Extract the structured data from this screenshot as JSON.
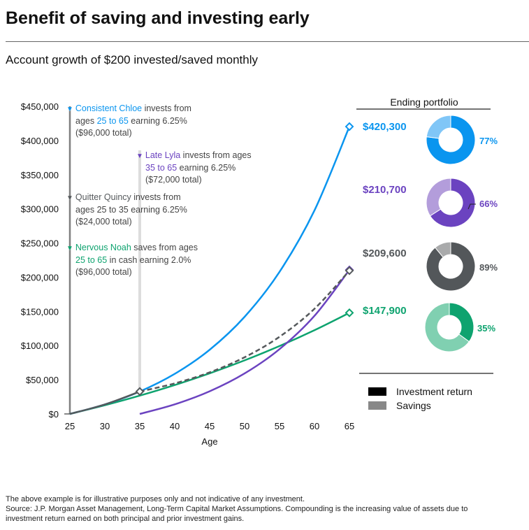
{
  "title": "Benefit of saving and investing early",
  "subtitle": "Account growth of $200 invested/saved monthly",
  "chart_data": {
    "type": "line",
    "xlabel": "Age",
    "ylabel": "",
    "x": [
      25,
      30,
      35,
      40,
      45,
      50,
      55,
      60,
      65
    ],
    "xlim": [
      25,
      65
    ],
    "ylim": [
      0,
      450000
    ],
    "x_ticks": [
      "25",
      "30",
      "35",
      "40",
      "45",
      "50",
      "55",
      "60",
      "65"
    ],
    "y_ticks": [
      "$0",
      "$50,000",
      "$100,000",
      "$150,000",
      "$200,000",
      "$250,000",
      "$300,000",
      "$350,000",
      "$400,000",
      "$450,000"
    ],
    "grid": false,
    "series": [
      {
        "name": "Consistent Chloe",
        "color": "#0a95ef",
        "dash": false,
        "values": [
          0,
          13850,
          32760,
          58570,
          93840,
          142020,
          207810,
          297640,
          420300
        ]
      },
      {
        "name": "Late Lyla",
        "color": "#6b43c0",
        "dash": false,
        "values": [
          null,
          null,
          0,
          14000,
          33100,
          59200,
          94800,
          143500,
          210700
        ]
      },
      {
        "name": "Quitter Quincy",
        "color": "#55595c",
        "dash": true,
        "values": [
          0,
          13850,
          32760,
          44630,
          60810,
          82850,
          112870,
          153780,
          209600
        ]
      },
      {
        "name": "Nervous Noah",
        "color": "#0ea36f",
        "dash": false,
        "values": [
          0,
          12700,
          26750,
          42260,
          59420,
          78370,
          99320,
          122470,
          147900
        ]
      }
    ],
    "annotations": [
      {
        "name": "Consistent Chloe",
        "l1": " invests from",
        "l2a": "ages ",
        "range": "25 to 65",
        "l2b": " earning 6.25%",
        "l3": "($96,000 total)",
        "color": "#0a95ef"
      },
      {
        "name": "Late Lyla",
        "l1": " invests from ages",
        "l2a": "",
        "range": "35 to 65",
        "l2b": " earning 6.25%",
        "l3": "($72,000 total)",
        "color": "#6b43c0"
      },
      {
        "name": "Quitter Quincy",
        "l1": " invests from",
        "l2a": "ages 25 to 35 earning 6.25%",
        "range": "",
        "l2b": "",
        "l3": "($24,000 total)",
        "color": "#55595c"
      },
      {
        "name": "Nervous Noah",
        "l1": " saves from ages",
        "l2a": "",
        "range": "25 to 65",
        "l2b": " in cash earning 2.0%",
        "l3": "($96,000 total)",
        "color": "#0ea36f"
      }
    ],
    "ending_portfolio": {
      "title": "Ending portfolio",
      "items": [
        {
          "value": "$420,300",
          "investment_return_pct": 77,
          "label": "77%",
          "dark": "#0a95ef",
          "light": "#80c6f7"
        },
        {
          "value": "$210,700",
          "investment_return_pct": 66,
          "label": "66%",
          "dark": "#6b43c0",
          "light": "#b39ddb"
        },
        {
          "value": "$209,600",
          "investment_return_pct": 89,
          "label": "89%",
          "dark": "#53575a",
          "light": "#a9aaab"
        },
        {
          "value": "$147,900",
          "investment_return_pct": 35,
          "label": "35%",
          "dark": "#0ea36f",
          "light": "#80d0b1"
        }
      ]
    },
    "legend": [
      {
        "label": "Investment return",
        "color": "#000000"
      },
      {
        "label": "Savings",
        "color": "#888888"
      }
    ]
  },
  "footnotes": [
    "The above example is for illustrative purposes only and not indicative of any investment.",
    "Source: J.P. Morgan Asset Management, Long-Term Capital Market Assumptions. Compounding is the increasing value of assets due to",
    "investment return earned on both principal and prior investment gains."
  ]
}
